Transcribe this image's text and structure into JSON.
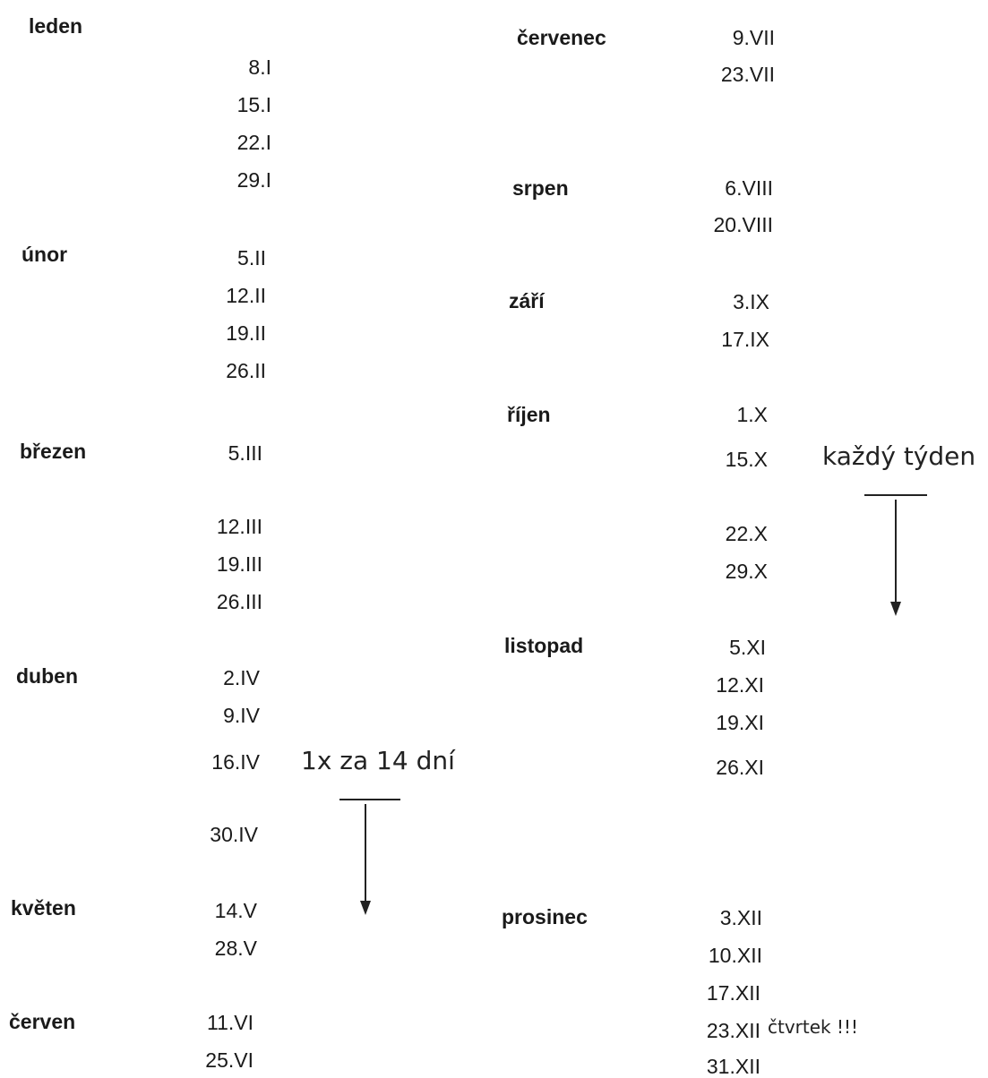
{
  "months": [
    {
      "name": "leden",
      "dates": [
        "8.I",
        "15.I",
        "22.I",
        "29.I"
      ]
    },
    {
      "name": "únor",
      "dates": [
        "5.II",
        "12.II",
        "19.II",
        "26.II"
      ]
    },
    {
      "name": "březen",
      "dates": [
        "5.III",
        "12.III",
        "19.III",
        "26.III"
      ]
    },
    {
      "name": "duben",
      "dates": [
        "2.IV",
        "9.IV",
        "16.IV",
        "30.IV"
      ]
    },
    {
      "name": "květen",
      "dates": [
        "14.V",
        "28.V"
      ]
    },
    {
      "name": "červen",
      "dates": [
        "11.VI",
        "25.VI"
      ]
    },
    {
      "name": "červenec",
      "dates": [
        "9.VII",
        "23.VII"
      ]
    },
    {
      "name": "srpen",
      "dates": [
        "6.VIII",
        "20.VIII"
      ]
    },
    {
      "name": "září",
      "dates": [
        "3.IX",
        "17.IX"
      ]
    },
    {
      "name": "říjen",
      "dates": [
        "1.X",
        "15.X",
        "22.X",
        "29.X"
      ]
    },
    {
      "name": "listopad",
      "dates": [
        "5.XI",
        "12.XI",
        "19.XI",
        "26.XI"
      ]
    },
    {
      "name": "prosinec",
      "dates": [
        "3.XII",
        "10.XII",
        "17.XII",
        "23.XII",
        "31.XII"
      ]
    }
  ],
  "notes": {
    "biweekly": "1x za 14 dní",
    "weekly": "každý týden",
    "thursday": "čtvrtek !!!"
  }
}
